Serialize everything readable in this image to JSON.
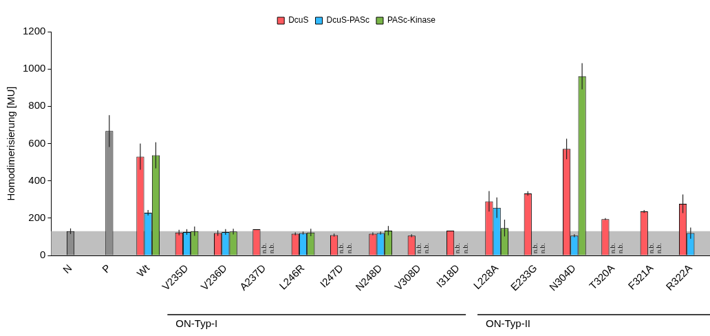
{
  "chart_data": {
    "type": "bar",
    "ylabel": "Homodimerisierung [MU]",
    "categories": [
      "N",
      "P",
      "Wt",
      "V235D",
      "V236D",
      "A237D",
      "L246R",
      "I247D",
      "N248D",
      "V308D",
      "I318D",
      "L228A",
      "E233G",
      "N304D",
      "T320A",
      "F321A",
      "R322A"
    ],
    "series": [
      {
        "color": "#8c8c8c",
        "values": [
          130,
          667,
          null,
          null,
          null,
          null,
          null,
          null,
          null,
          null,
          null,
          null,
          null,
          null,
          null,
          null,
          null
        ],
        "errors": [
          15,
          85,
          null,
          null,
          null,
          null,
          null,
          null,
          null,
          null,
          null,
          null,
          null,
          null,
          null,
          null,
          null
        ]
      },
      {
        "name": "DcuS",
        "color": "#ff5a5f",
        "values": [
          null,
          null,
          530,
          123,
          120,
          140,
          116,
          109,
          116,
          106,
          133,
          290,
          332,
          571,
          195,
          236,
          277
        ],
        "errors": [
          null,
          null,
          70,
          15,
          15,
          null,
          8,
          8,
          8,
          8,
          null,
          55,
          12,
          55,
          5,
          8,
          50
        ]
      },
      {
        "name": "DcuS-PASc",
        "color": "#33bbff",
        "values": [
          null,
          null,
          229,
          126,
          126,
          null,
          120,
          null,
          120,
          null,
          null,
          256,
          null,
          106,
          null,
          null,
          120
        ],
        "errors": [
          null,
          null,
          15,
          15,
          15,
          null,
          8,
          null,
          8,
          null,
          null,
          55,
          null,
          8,
          null,
          null,
          30
        ]
      },
      {
        "name": "PASc-Kinase",
        "color": "#7ab648",
        "values": [
          null,
          null,
          537,
          130,
          128,
          null,
          123,
          null,
          133,
          null,
          null,
          147,
          null,
          961,
          null,
          null,
          null
        ],
        "errors": [
          null,
          null,
          70,
          25,
          15,
          null,
          20,
          null,
          25,
          null,
          null,
          45,
          null,
          70,
          null,
          null,
          null
        ]
      }
    ],
    "bands": [
      {
        "axis": "y",
        "from": 0,
        "to": 130,
        "color": "#bfbfbf"
      }
    ],
    "annotations": [
      {
        "text": "n.b.",
        "x": "A237D",
        "y": 0
      },
      {
        "text": "n.b.",
        "x": "A237D",
        "y": 0
      },
      {
        "text": "n.b.",
        "x": "I247D",
        "y": 0
      },
      {
        "text": "n.b.",
        "x": "I247D",
        "y": 0
      },
      {
        "text": "n.b.",
        "x": "V308D",
        "y": 0
      },
      {
        "text": "n.b.",
        "x": "V308D",
        "y": 0
      },
      {
        "text": "n.b.",
        "x": "I318D",
        "y": 0
      },
      {
        "text": "n.b.",
        "x": "I318D",
        "y": 0
      },
      {
        "text": "n.b.",
        "x": "E233G",
        "y": 0
      },
      {
        "text": "n.b.",
        "x": "E233G",
        "y": 0
      },
      {
        "text": "n.b.",
        "x": "T320A",
        "y": 0
      },
      {
        "text": "n.b.",
        "x": "T320A",
        "y": 0
      },
      {
        "text": "n.b.",
        "x": "F321A",
        "y": 0
      },
      {
        "text": "n.b.",
        "x": "F321A",
        "y": 0
      },
      "ON-Typ-I",
      "ON-Typ-II"
    ],
    "ylim": [
      0,
      1200
    ],
    "yticks": [
      0,
      200,
      400,
      600,
      800,
      1000,
      1200
    ],
    "grid": false,
    "legend": "top"
  }
}
